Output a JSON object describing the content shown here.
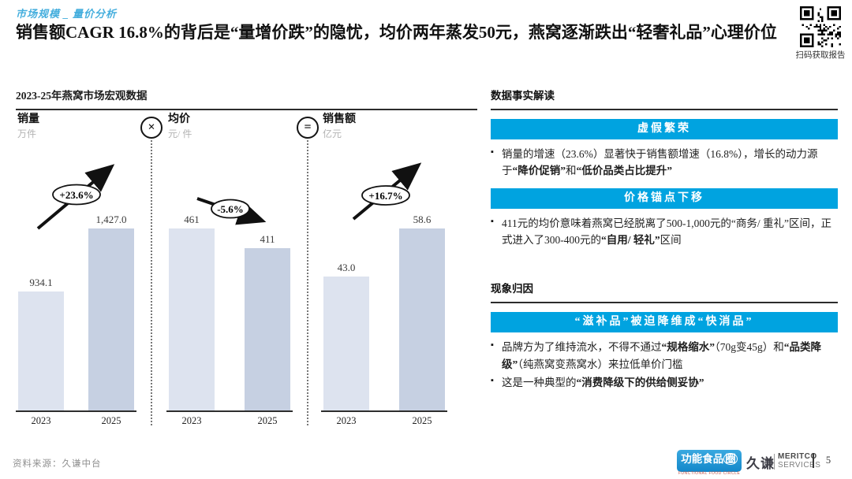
{
  "accent_color": "#00A3E0",
  "header": {
    "breadcrumb": "市场规模 _ 量价分析",
    "title": "销售额CAGR 16.8%的背后是“量增价跌”的隐忧，均价两年蒸发50元，燕窝逐渐跌出“轻奢礼品”心理价位",
    "qr_caption": "扫码获取报告"
  },
  "chart_data": {
    "type": "bar",
    "title": "2023-25年燕窝市场宏观数据",
    "categories": [
      "2023",
      "2025"
    ],
    "bar_colors": [
      "#dde3ef",
      "#c6d0e2"
    ],
    "ylim_note": "each panel scaled independently, tallest bar = max value",
    "panels": [
      {
        "name": "销量",
        "unit": "万件",
        "values": [
          934.1,
          1427.0
        ],
        "value_labels": [
          "934.1",
          "1,427.0"
        ],
        "trend": "up",
        "trend_label": "+23.6%"
      },
      {
        "name": "均价",
        "unit": "元/ 件",
        "values": [
          461,
          411
        ],
        "value_labels": [
          "461",
          "411"
        ],
        "trend": "down",
        "trend_label": "-5.6%",
        "operator": "×"
      },
      {
        "name": "销售额",
        "unit": "亿元",
        "values": [
          43.0,
          58.6
        ],
        "value_labels": [
          "43.0",
          "58.6"
        ],
        "trend": "up",
        "trend_label": "+16.7%",
        "operator": "="
      }
    ]
  },
  "right": {
    "section1": {
      "title": "数据事实解读",
      "blocks": [
        {
          "banner": "虚假繁荣",
          "bullets": [
            [
              {
                "t": "销量的增速（23.6%）显著快于销售额增速（16.8%），增长的动力源于"
              },
              {
                "t": "“降价促销”",
                "b": true
              },
              {
                "t": "和"
              },
              {
                "t": "“低价品类占比提升”",
                "b": true
              }
            ]
          ]
        },
        {
          "banner": "价格锚点下移",
          "bullets": [
            [
              {
                "t": "411元的均价意味着燕窝已经脱离了500-1,000元的“商务/ 重礼”区间，正式进入了300-400元的"
              },
              {
                "t": "“自用/ 轻礼”",
                "b": true
              },
              {
                "t": "区间"
              }
            ]
          ]
        }
      ]
    },
    "section2": {
      "title": "现象归因",
      "blocks": [
        {
          "banner": "“滋补品”被迫降维成“快消品”",
          "bullets": [
            [
              {
                "t": "品牌方为了维持流水，不得不通过"
              },
              {
                "t": "“规格缩水”",
                "b": true
              },
              {
                "t": "（70g变45g）和"
              },
              {
                "t": "“品类降级”",
                "b": true
              },
              {
                "t": "（纯燕窝变燕窝水）来拉低单价门槛"
              }
            ],
            [
              {
                "t": "这是一种典型的"
              },
              {
                "t": "“消费降级下的供给侧妥协”",
                "b": true
              }
            ]
          ]
        }
      ]
    }
  },
  "footer": {
    "source": "资料来源：久谦中台",
    "logo_food_main": "功能食品",
    "logo_food_ring": "圈",
    "logo_food_sub": "FUNCTIONAL FOOD CIRCLE",
    "logo_jq": "久谦",
    "logo_meritco_line1": "MERITCO",
    "logo_meritco_line2": "SERVICES",
    "page_number": "5"
  }
}
